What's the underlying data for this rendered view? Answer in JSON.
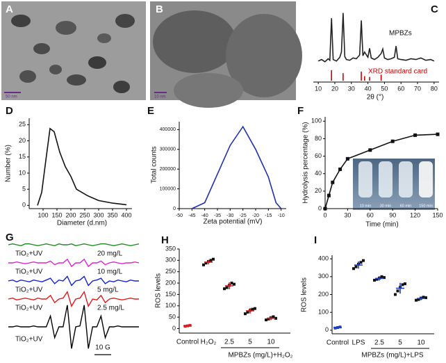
{
  "images": [
    {
      "panel": "A",
      "scale_bar": "50 nm"
    },
    {
      "panel": "B",
      "scale_bar": "10 nm"
    }
  ],
  "chart_data": [
    {
      "type": "line",
      "panel": "C",
      "xlabel": "2θ (°)",
      "xlim": [
        7,
        83
      ],
      "ylim": [
        0,
        100
      ],
      "xticks": [
        10,
        20,
        30,
        40,
        50,
        60,
        70,
        80
      ],
      "series": [
        {
          "name": "MPBZs",
          "color": "#222222",
          "x": [
            10,
            12,
            14,
            16,
            17,
            18,
            19,
            21,
            23,
            24,
            25,
            26,
            27,
            29,
            31,
            33,
            35,
            36,
            37,
            38,
            40,
            41,
            42,
            44,
            46,
            48,
            49,
            50,
            52,
            54,
            56,
            57,
            58,
            60,
            63,
            66,
            69,
            72,
            75,
            78,
            80
          ],
          "values": [
            28,
            30,
            27,
            31,
            29,
            85,
            30,
            28,
            33,
            40,
            92,
            34,
            30,
            29,
            32,
            31,
            36,
            82,
            35,
            40,
            33,
            45,
            32,
            30,
            33,
            38,
            44,
            32,
            30,
            31,
            33,
            48,
            31,
            30,
            29,
            31,
            30,
            32,
            29,
            30,
            28
          ]
        },
        {
          "name": "XRD standard card",
          "color": "#d00000",
          "style": "stick",
          "x": [
            18,
            25,
            36,
            38,
            41,
            48
          ],
          "values": [
            14,
            10,
            12,
            6,
            5,
            8
          ]
        }
      ]
    },
    {
      "type": "line",
      "panel": "D",
      "xlabel": "Diameter (d.nm)",
      "ylabel": "Number (%)",
      "color": "#111111",
      "x": [
        80,
        95,
        110,
        125,
        140,
        160,
        180,
        200,
        220,
        260,
        300,
        350,
        400
      ],
      "values": [
        0,
        4,
        14,
        23.8,
        22.8,
        16.5,
        12,
        9,
        5,
        3,
        1.5,
        0.7,
        0.2
      ],
      "xlim": [
        50,
        420
      ],
      "ylim": [
        -1,
        27
      ],
      "xticks": [
        100,
        150,
        200,
        250,
        300,
        350,
        400
      ],
      "yticks": [
        0,
        5,
        10,
        15,
        20,
        25
      ]
    },
    {
      "type": "line",
      "panel": "E",
      "xlabel": "Zeta potential (mV)",
      "ylabel": "Total counts",
      "color": "#1f2fb0",
      "x": [
        -45,
        -40,
        -35,
        -30,
        -25,
        -20,
        -15,
        -12,
        -10
      ],
      "values": [
        0,
        30000,
        175000,
        320000,
        415000,
        300000,
        160000,
        30000,
        0
      ],
      "xlim": [
        -50,
        -8
      ],
      "ylim": [
        0,
        440000
      ],
      "xticks": [
        -50,
        -45,
        -40,
        -35,
        -30,
        -25,
        -20,
        -15,
        -10
      ],
      "yticks": [
        0,
        100000,
        200000,
        300000,
        400000
      ]
    },
    {
      "type": "line",
      "panel": "F",
      "xlabel": "Time (min)",
      "ylabel": "Hydrolysis percentage (%)",
      "color": "#111111",
      "marker": "square",
      "x": [
        0,
        5,
        10,
        20,
        30,
        60,
        90,
        120,
        150
      ],
      "values": [
        0,
        15,
        30,
        45,
        57,
        67,
        77,
        84,
        85
      ],
      "xlim": [
        0,
        150
      ],
      "ylim": [
        0,
        105
      ],
      "xticks": [
        0,
        30,
        60,
        90,
        120,
        150
      ],
      "yticks": [
        0,
        20,
        40,
        60,
        80,
        100
      ],
      "inset_labels": [
        "10 min",
        "30 min",
        "60 min",
        "150 min"
      ]
    },
    {
      "type": "spectra",
      "panel": "G",
      "scale_bar": "10 G",
      "series": [
        {
          "name": "TiO₂+UV",
          "dose": "20 mg/L",
          "color": "#1a8a1a",
          "values": [
            0,
            1,
            0,
            -1,
            1,
            1,
            0,
            -1,
            0,
            1,
            0,
            -1,
            1,
            0,
            0,
            1,
            -1,
            0,
            1,
            0,
            -1,
            0,
            1,
            1,
            0,
            -1,
            0,
            1,
            0,
            -1,
            0,
            1
          ]
        },
        {
          "name": "TiO₂+UV",
          "dose": "10 mg/L",
          "color": "#e020d0",
          "values": [
            0,
            0,
            1,
            0,
            -1,
            0,
            1,
            0,
            0,
            0,
            2,
            -2,
            0,
            0,
            4,
            -4,
            0,
            0,
            4,
            -4,
            0,
            0,
            2,
            -2,
            0,
            1,
            0,
            -1,
            0,
            0,
            1,
            0
          ]
        },
        {
          "name": "TiO₂+UV",
          "dose": "5 mg/L",
          "color": "#1020d0",
          "values": [
            0,
            1,
            -1,
            1,
            0,
            -1,
            1,
            0,
            -1,
            1,
            3,
            -3,
            1,
            0,
            5,
            -5,
            0,
            1,
            5,
            -5,
            0,
            1,
            3,
            -3,
            0,
            -1,
            1,
            0,
            -1,
            1,
            0,
            0
          ]
        },
        {
          "name": "TiO₂+UV",
          "dose": "2.5 mg/L",
          "color": "#e01818",
          "values": [
            0,
            1,
            -1,
            0,
            1,
            0,
            -1,
            1,
            0,
            0,
            4,
            -4,
            0,
            1,
            8,
            -8,
            0,
            1,
            8,
            -8,
            0,
            -1,
            4,
            -4,
            0,
            1,
            0,
            -1,
            0,
            1,
            0,
            0
          ]
        },
        {
          "name": "TiO₂+UV",
          "color": "#000000",
          "values": [
            0,
            0,
            1,
            0,
            0,
            0,
            1,
            0,
            0,
            0,
            12,
            -12,
            0,
            0,
            24,
            -24,
            0,
            1,
            24,
            -24,
            0,
            0,
            12,
            -12,
            0,
            0,
            1,
            0,
            0,
            0,
            0,
            0
          ]
        }
      ]
    },
    {
      "type": "dot",
      "panel": "H",
      "ylabel": "ROS levels",
      "xlabel": "MPBZs (mg/L)+H₂O₂",
      "categories": [
        "Control",
        "H₂O₂",
        "2.5",
        "5",
        "10"
      ],
      "values": [
        12,
        292,
        188,
        78,
        45
      ],
      "errors": [
        2,
        10,
        15,
        12,
        8
      ],
      "points": [
        [
          10,
          12,
          14
        ],
        [
          280,
          288,
          295,
          300,
          305
        ],
        [
          175,
          180,
          190,
          200,
          195
        ],
        [
          65,
          72,
          80,
          85,
          88
        ],
        [
          38,
          42,
          48,
          52,
          45
        ]
      ],
      "color": "#111111",
      "error_color": "#d42020",
      "ylim": [
        -20,
        350
      ],
      "yticks": [
        0,
        50,
        100,
        150,
        200,
        250,
        300,
        350
      ]
    },
    {
      "type": "dot",
      "panel": "I",
      "ylabel": "ROS levels",
      "xlabel": "MPBZs (mg/L)+LPS",
      "categories": [
        "Control",
        "LPS",
        "2.5",
        "5",
        "10"
      ],
      "values": [
        15,
        365,
        290,
        235,
        178
      ],
      "errors": [
        5,
        20,
        12,
        30,
        10
      ],
      "points": [
        [
          12,
          15,
          18
        ],
        [
          345,
          355,
          370,
          380,
          390
        ],
        [
          280,
          285,
          292,
          300,
          295
        ],
        [
          200,
          220,
          240,
          255,
          260
        ],
        [
          168,
          172,
          180,
          185,
          182
        ]
      ],
      "color": "#111111",
      "error_color": "#1f3fc0",
      "ylim": [
        -20,
        420
      ],
      "yticks": [
        0,
        100,
        200,
        300,
        400
      ]
    }
  ]
}
